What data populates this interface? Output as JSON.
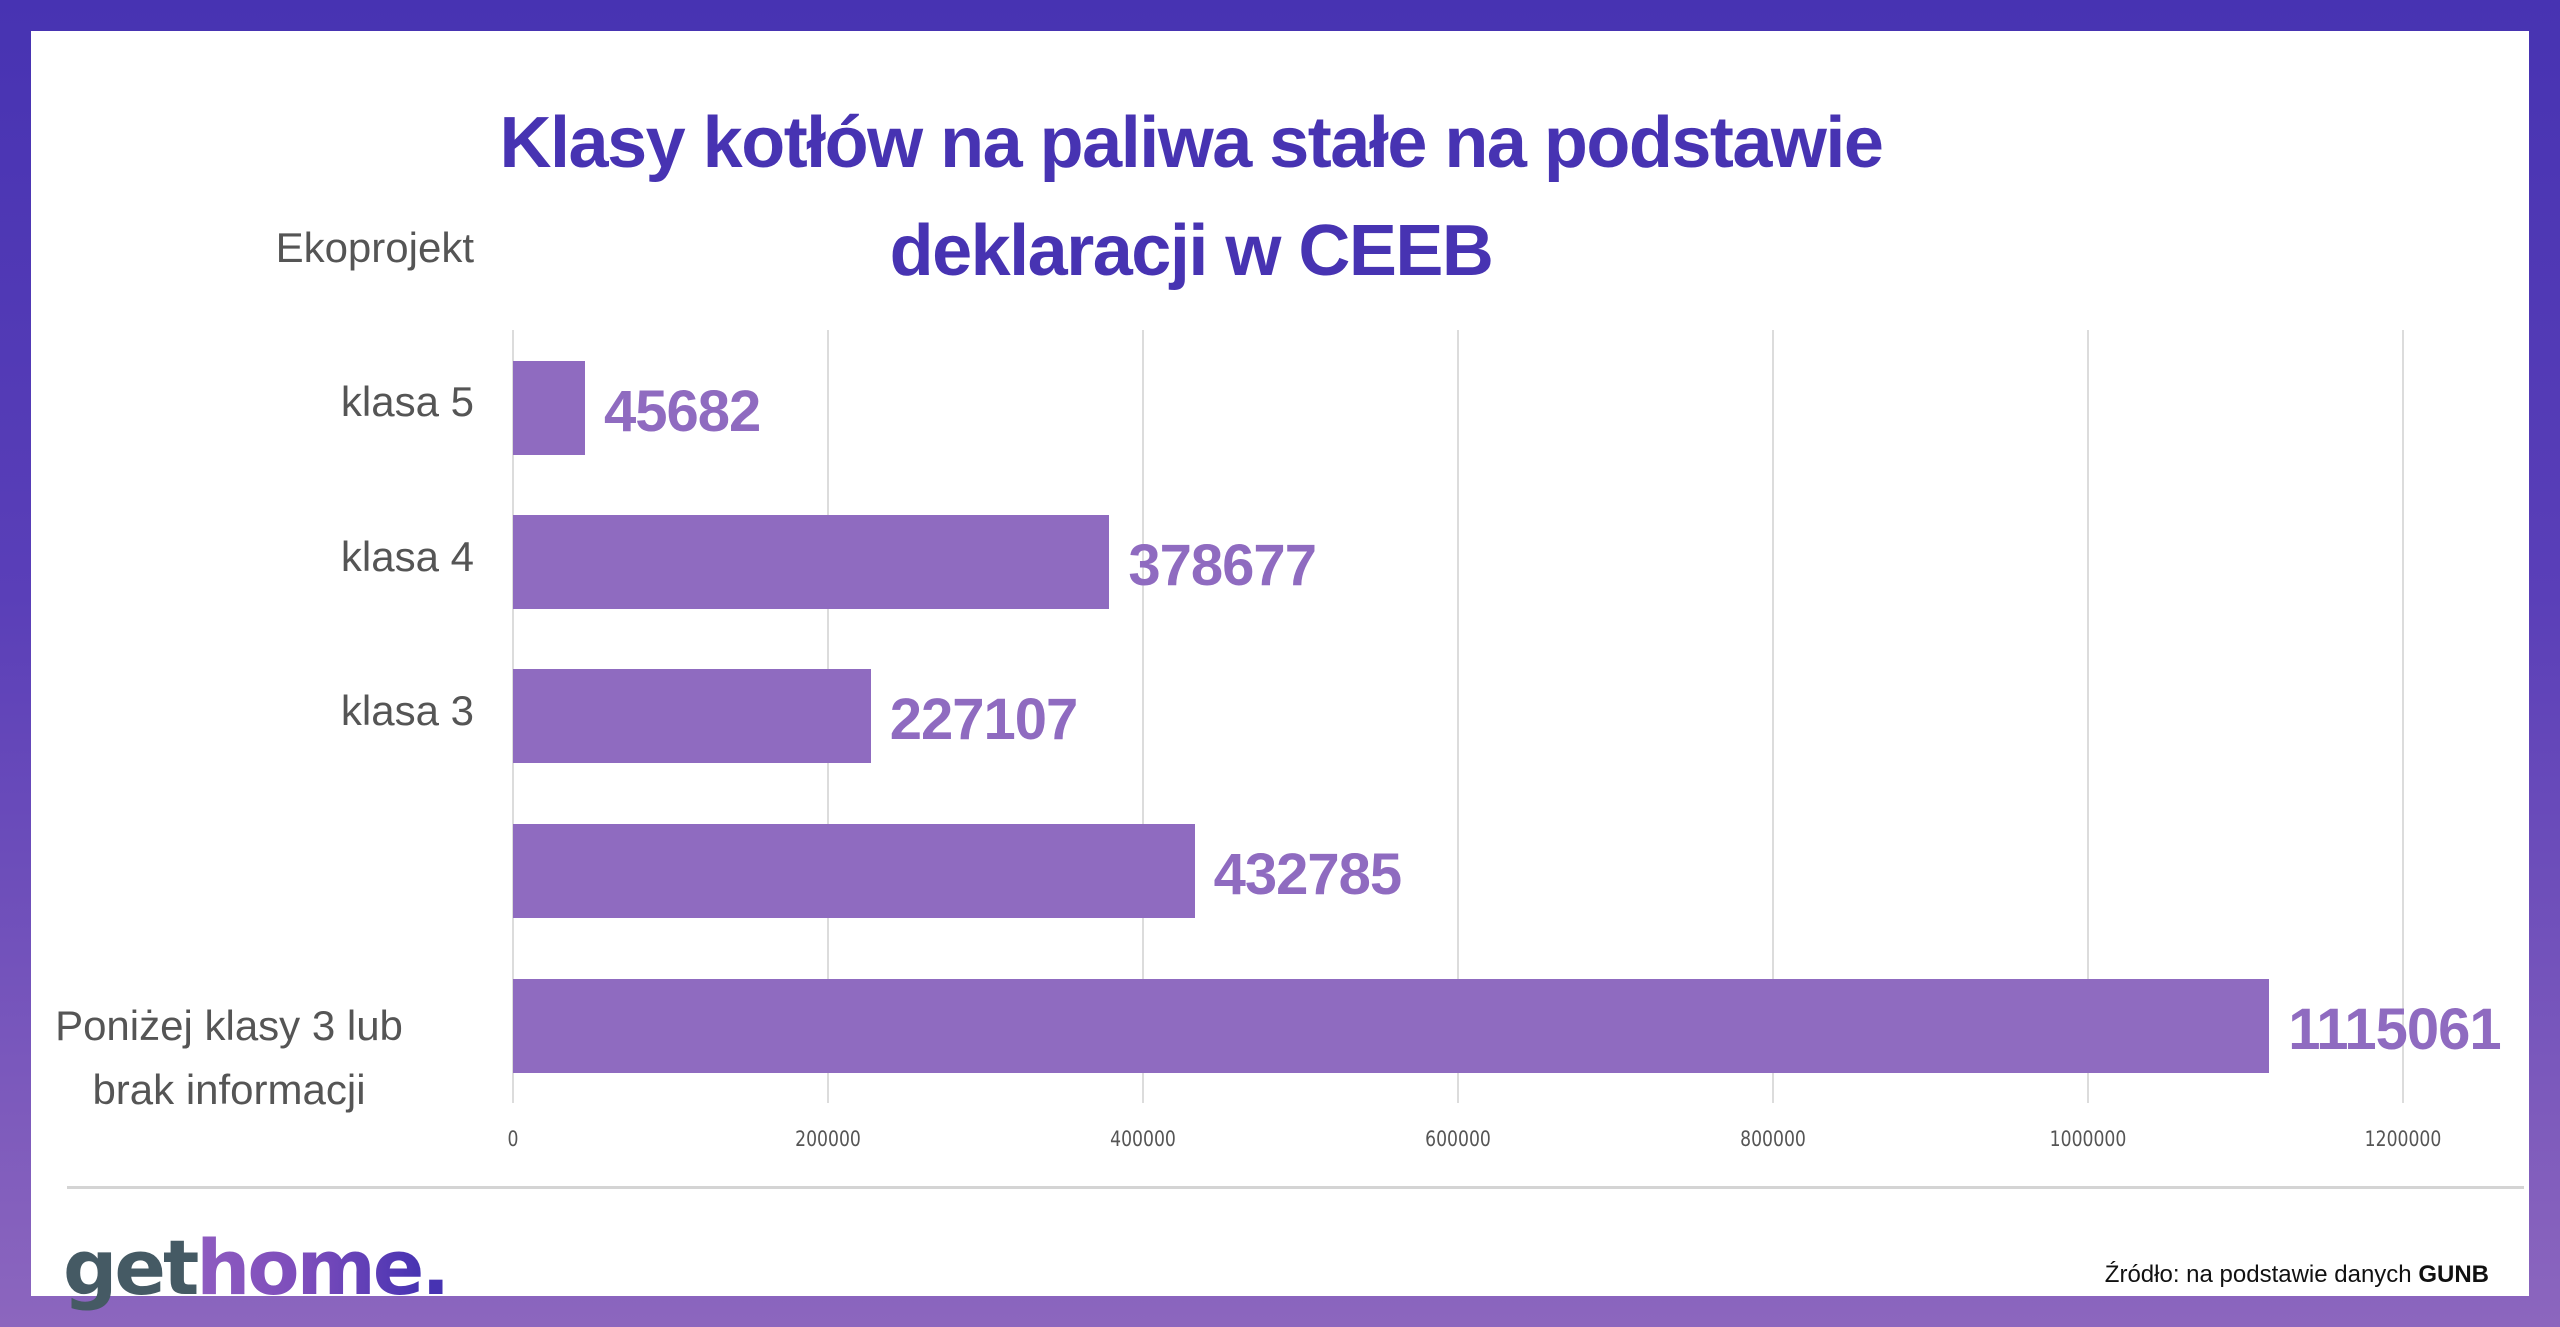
{
  "title": {
    "line1": "Klasy kotłów na paliwa stałe na podstawie",
    "line2": "deklaracji w CEEB"
  },
  "colors": {
    "frame_top": "#4733B2",
    "frame_bottom": "#8C66BE",
    "title": "#4733B2",
    "bar": "#8F6BC0",
    "bar_label": "#8F6BC0",
    "category_label": "#555555",
    "gridline": "#DCDCDC"
  },
  "chart_data": {
    "type": "bar",
    "orientation": "horizontal",
    "title": "Klasy kotłów na paliwa stałe na podstawie deklaracji w CEEB",
    "categories": [
      "Ekoprojekt",
      "klasa 5",
      "klasa 4",
      "klasa 3",
      "Poniżej klasy 3 lub brak informacji"
    ],
    "values": [
      45682,
      378677,
      227107,
      432785,
      1115061
    ],
    "value_labels": [
      "45682",
      "378677",
      "227107",
      "432785",
      "1115061"
    ],
    "xlabel": "",
    "ylabel": "",
    "xlim": [
      0,
      1200000
    ],
    "x_ticks": [
      "0",
      "200000",
      "400000",
      "600000",
      "800000",
      "1000000",
      "1200000"
    ],
    "grid": "vertical",
    "legend": "none",
    "data_labels": true
  },
  "labels": {
    "cat0": "Ekoprojekt",
    "cat1": "klasa 5",
    "cat2": "klasa 4",
    "cat3": "klasa 3",
    "cat4_line1": "Poniżej klasy 3 lub",
    "cat4_line2": "brak informacji"
  },
  "footer": {
    "logo_get": "get",
    "logo_home": "home",
    "logo_dot": ".",
    "source_prefix": "Źródło: na podstawie danych ",
    "source_bold": "GUNB"
  }
}
